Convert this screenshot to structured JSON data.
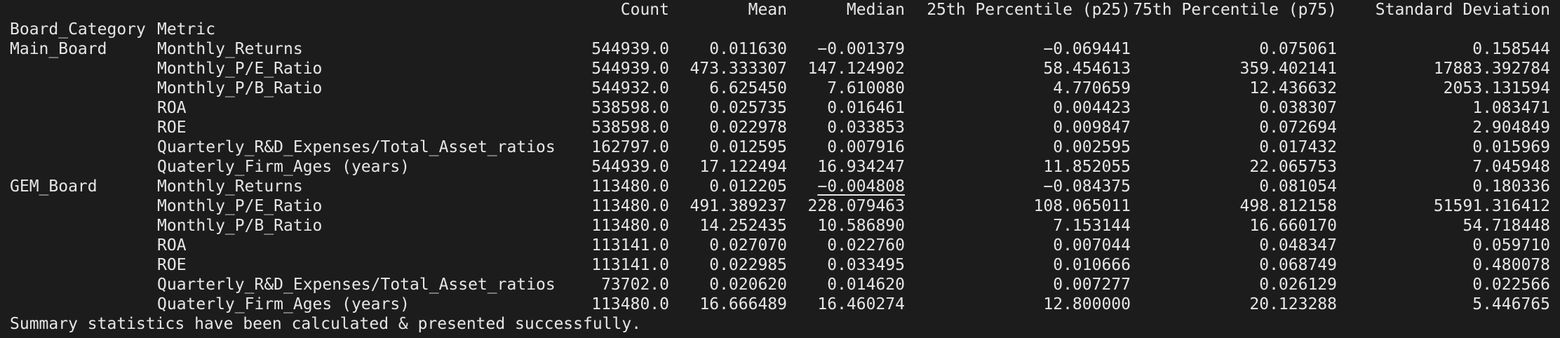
{
  "header": {
    "columns": [
      "Count",
      "Mean",
      "Median",
      "25th Percentile (p25)",
      "75th Percentile (p75)",
      "Standard Deviation"
    ],
    "index_names": [
      "Board_Category",
      "Metric"
    ]
  },
  "groups": [
    {
      "category": "Main_Board",
      "rows": [
        {
          "metric": "Monthly_Returns",
          "values": [
            "544939.0",
            "0.011630",
            "-0.001379",
            "-0.069441",
            "0.075061",
            "0.158544"
          ]
        },
        {
          "metric": "Monthly_P/E_Ratio",
          "values": [
            "544939.0",
            "473.333307",
            "147.124902",
            "58.454613",
            "359.402141",
            "17883.392784"
          ]
        },
        {
          "metric": "Monthly_P/B_Ratio",
          "values": [
            "544932.0",
            "6.625450",
            "7.610080",
            "4.770659",
            "12.436632",
            "2053.131594"
          ]
        },
        {
          "metric": "ROA",
          "values": [
            "538598.0",
            "0.025735",
            "0.016461",
            "0.004423",
            "0.038307",
            "1.083471"
          ]
        },
        {
          "metric": "ROE",
          "values": [
            "538598.0",
            "0.022978",
            "0.033853",
            "0.009847",
            "0.072694",
            "2.904849"
          ]
        },
        {
          "metric": "Quarterly_R&D_Expenses/Total_Asset_ratios",
          "values": [
            "162797.0",
            "0.012595",
            "0.007916",
            "0.002595",
            "0.017432",
            "0.015969"
          ]
        },
        {
          "metric": "Quaterly_Firm_Ages (years)",
          "values": [
            "544939.0",
            "17.122494",
            "16.934247",
            "11.852055",
            "22.065753",
            "7.045948"
          ]
        }
      ]
    },
    {
      "category": "GEM_Board",
      "rows": [
        {
          "metric": "Monthly_Returns",
          "values": [
            "113480.0",
            "0.012205",
            "-0.004808",
            "-0.084375",
            "0.081054",
            "0.180336"
          ]
        },
        {
          "metric": "Monthly_P/E_Ratio",
          "values": [
            "113480.0",
            "491.389237",
            "228.079463",
            "108.065011",
            "498.812158",
            "51591.316412"
          ]
        },
        {
          "metric": "Monthly_P/B_Ratio",
          "values": [
            "113480.0",
            "14.252435",
            "10.586890",
            "7.153144",
            "16.660170",
            "54.718448"
          ]
        },
        {
          "metric": "ROA",
          "values": [
            "113141.0",
            "0.027070",
            "0.022760",
            "0.007044",
            "0.048347",
            "0.059710"
          ]
        },
        {
          "metric": "ROE",
          "values": [
            "113141.0",
            "0.022985",
            "0.033495",
            "0.010666",
            "0.068749",
            "0.480078"
          ]
        },
        {
          "metric": "Quarterly_R&D_Expenses/Total_Asset_ratios",
          "values": [
            "73702.0",
            "0.020620",
            "0.014620",
            "0.007277",
            "0.026129",
            "0.022566"
          ]
        },
        {
          "metric": "Quaterly_Firm_Ages (years)",
          "values": [
            "113480.0",
            "16.666489",
            "16.460274",
            "12.800000",
            "20.123288",
            "5.446765"
          ]
        }
      ]
    }
  ],
  "footer": {
    "message": "Summary statistics have been calculated & presented successfully."
  },
  "colors": {
    "background": "#1c1c1c",
    "text": "#e6e6e6"
  }
}
